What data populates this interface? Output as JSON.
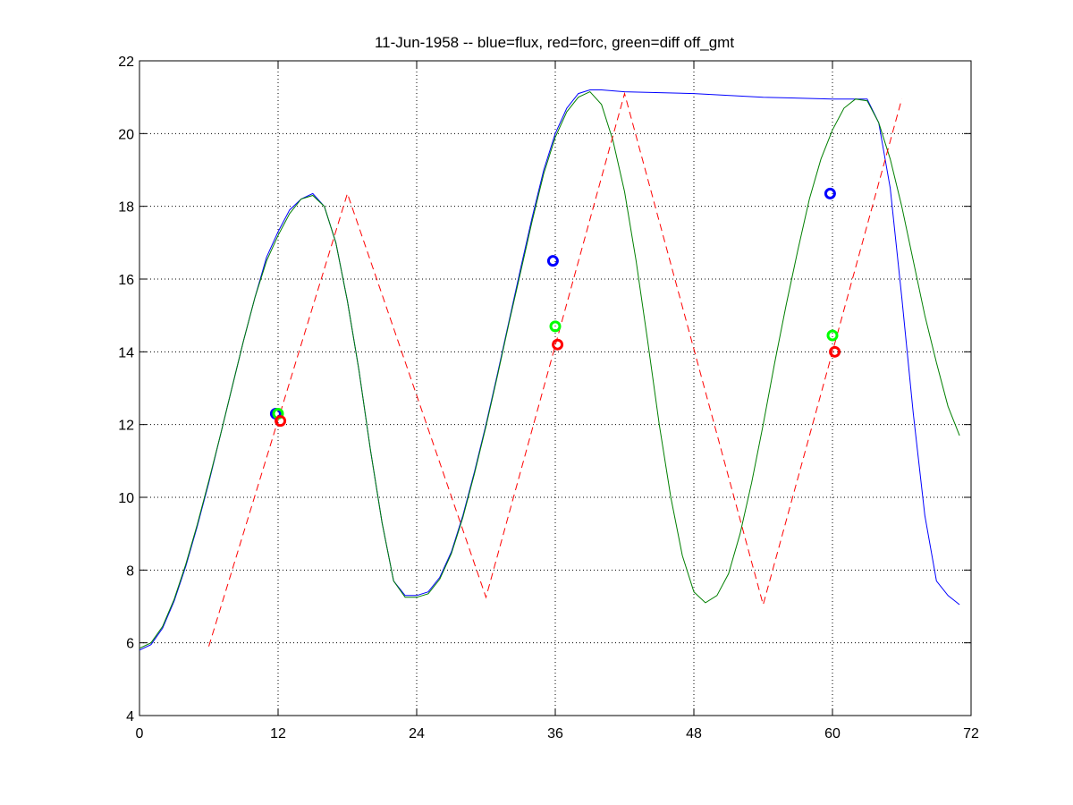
{
  "chart_data": {
    "type": "line",
    "title": "11-Jun-1958 -- blue=flux, red=forc, green=diff off_gmt",
    "xlabel": "",
    "ylabel": "",
    "xlim": [
      0,
      72
    ],
    "ylim": [
      4,
      22
    ],
    "xticks": [
      0,
      12,
      24,
      36,
      48,
      60,
      72
    ],
    "yticks": [
      4,
      6,
      8,
      10,
      12,
      14,
      16,
      18,
      20,
      22
    ],
    "grid": true,
    "colors": {
      "flux": "#0000ff",
      "forc": "#ff0000",
      "diff": "#007f00",
      "diff_marker": "#00ff00"
    },
    "series": [
      {
        "id": "flux",
        "style": "solid",
        "x": [
          0,
          1,
          2,
          3,
          4,
          5,
          6,
          7,
          8,
          9,
          10,
          11,
          12,
          13,
          14,
          15,
          16,
          17,
          18,
          19,
          20,
          21,
          22,
          23,
          24,
          25,
          26,
          27,
          28,
          29,
          30,
          31,
          32,
          33,
          34,
          35,
          36,
          37,
          38,
          39,
          40,
          42,
          48,
          54,
          60,
          62,
          63,
          64,
          65,
          66,
          67,
          68,
          69,
          70,
          71
        ],
        "y": [
          5.8,
          5.95,
          6.4,
          7.15,
          8.1,
          9.2,
          10.4,
          11.7,
          13.0,
          14.3,
          15.5,
          16.6,
          17.3,
          17.9,
          18.2,
          18.35,
          18.0,
          17.0,
          15.4,
          13.5,
          11.3,
          9.3,
          7.7,
          7.3,
          7.3,
          7.4,
          7.8,
          8.5,
          9.5,
          10.7,
          12.0,
          13.4,
          14.85,
          16.3,
          17.7,
          19.0,
          20.0,
          20.7,
          21.1,
          21.2,
          21.2,
          21.15,
          21.1,
          21.0,
          20.95,
          20.95,
          20.95,
          20.3,
          18.5,
          15.5,
          12.3,
          9.5,
          7.7,
          7.3,
          7.05
        ]
      },
      {
        "id": "diff",
        "style": "solid",
        "x": [
          0,
          1,
          2,
          3,
          4,
          5,
          6,
          7,
          8,
          9,
          10,
          11,
          12,
          13,
          14,
          15,
          16,
          17,
          18,
          19,
          20,
          21,
          22,
          23,
          24,
          25,
          26,
          27,
          28,
          29,
          30,
          31,
          32,
          33,
          34,
          35,
          36,
          37,
          38,
          39,
          40,
          41,
          42,
          43,
          44,
          45,
          46,
          47,
          48,
          49,
          50,
          51,
          52,
          53,
          54,
          55,
          56,
          57,
          58,
          59,
          60,
          61,
          62,
          63,
          64,
          65,
          66,
          67,
          68,
          69,
          70,
          71
        ],
        "y": [
          5.85,
          6.0,
          6.45,
          7.2,
          8.15,
          9.25,
          10.45,
          11.7,
          13.0,
          14.3,
          15.5,
          16.5,
          17.2,
          17.8,
          18.2,
          18.3,
          18.0,
          17.0,
          15.4,
          13.5,
          11.3,
          9.3,
          7.7,
          7.25,
          7.25,
          7.35,
          7.75,
          8.45,
          9.45,
          10.65,
          11.95,
          13.35,
          14.8,
          16.2,
          17.6,
          18.9,
          19.9,
          20.6,
          21.0,
          21.15,
          20.8,
          19.8,
          18.4,
          16.5,
          14.3,
          12.0,
          10.0,
          8.4,
          7.4,
          7.1,
          7.3,
          7.9,
          9.0,
          10.4,
          12.0,
          13.7,
          15.3,
          16.8,
          18.2,
          19.3,
          20.1,
          20.7,
          20.95,
          20.9,
          20.3,
          19.3,
          18.0,
          16.5,
          15.0,
          13.7,
          12.5,
          11.7
        ]
      },
      {
        "id": "forc",
        "style": "dashed",
        "x": [
          6,
          18,
          30,
          42,
          54,
          66
        ],
        "y": [
          5.9,
          18.35,
          7.25,
          21.1,
          7.05,
          20.95
        ]
      }
    ],
    "markers": [
      {
        "series": "flux",
        "x": [
          11.8,
          35.8,
          59.8
        ],
        "y": [
          12.3,
          16.5,
          18.35
        ]
      },
      {
        "series": "diff",
        "x": [
          12.0,
          36.0,
          60.0
        ],
        "y": [
          12.3,
          14.7,
          14.45
        ]
      },
      {
        "series": "forc",
        "x": [
          12.2,
          36.2,
          60.2
        ],
        "y": [
          12.1,
          14.2,
          14.0
        ]
      }
    ]
  }
}
